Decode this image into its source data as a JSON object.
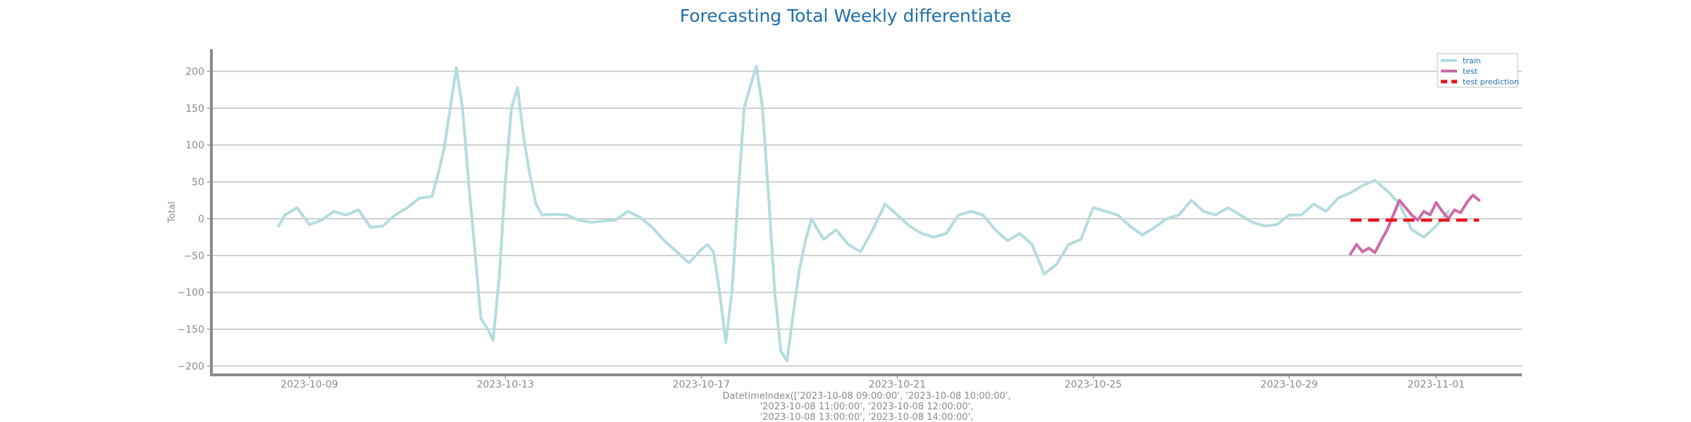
{
  "chart_data": {
    "type": "line",
    "title": "Forecasting Total Weekly differentiate",
    "ylabel": "Total",
    "xlabel_lines": [
      "DatetimeIndex(['2023-10-08 09:00:00', '2023-10-08 10:00:00',",
      "'2023-10-08 11:00:00', '2023-10-08 12:00:00',",
      "'2023-10-08 13:00:00', '2023-10-08 14:00:00',"
    ],
    "ylim": [
      -212,
      230
    ],
    "xlim": [
      "2023-10-07T00:00",
      "2023-11-02T18:00"
    ],
    "yticks": [
      200,
      150,
      100,
      50,
      0,
      -50,
      -100,
      -150,
      -200
    ],
    "ytick_labels": [
      "200",
      "150",
      "100",
      "50",
      "0",
      "−50",
      "−100",
      "−150",
      "−200"
    ],
    "xticks": [
      "2023-10-09",
      "2023-10-13",
      "2023-10-17",
      "2023-10-21",
      "2023-10-25",
      "2023-10-29",
      "2023-11-01"
    ],
    "grid": "horizontal",
    "legend_position": "top-right",
    "colors": {
      "train": "#b5dcdf",
      "test": "#cc6aa8",
      "test_prediction": "#e8161e",
      "title": "#1f6fa8",
      "axis": "#8a8a8a",
      "grid": "#c4c4c4"
    },
    "legend": [
      {
        "key": "train",
        "label": "train"
      },
      {
        "key": "test",
        "label": "test"
      },
      {
        "key": "test_prediction",
        "label": "test prediction"
      }
    ],
    "series": [
      {
        "name": "train",
        "key": "train",
        "style": "solid",
        "points": [
          [
            "2023-10-08T09:00",
            -10
          ],
          [
            "2023-10-08T12:00",
            5
          ],
          [
            "2023-10-08T18:00",
            15
          ],
          [
            "2023-10-09T00:00",
            -8
          ],
          [
            "2023-10-09T06:00",
            -2
          ],
          [
            "2023-10-09T12:00",
            10
          ],
          [
            "2023-10-09T18:00",
            5
          ],
          [
            "2023-10-10T00:00",
            12
          ],
          [
            "2023-10-10T06:00",
            -12
          ],
          [
            "2023-10-10T12:00",
            -10
          ],
          [
            "2023-10-10T18:00",
            5
          ],
          [
            "2023-10-11T00:00",
            15
          ],
          [
            "2023-10-11T06:00",
            28
          ],
          [
            "2023-10-11T12:00",
            30
          ],
          [
            "2023-10-11T15:00",
            60
          ],
          [
            "2023-10-11T18:00",
            95
          ],
          [
            "2023-10-11T21:00",
            150
          ],
          [
            "2023-10-12T00:00",
            205
          ],
          [
            "2023-10-12T03:00",
            150
          ],
          [
            "2023-10-12T06:00",
            50
          ],
          [
            "2023-10-12T09:00",
            -40
          ],
          [
            "2023-10-12T12:00",
            -135
          ],
          [
            "2023-10-12T15:00",
            -148
          ],
          [
            "2023-10-12T18:00",
            -165
          ],
          [
            "2023-10-12T21:00",
            -80
          ],
          [
            "2023-10-13T00:00",
            50
          ],
          [
            "2023-10-13T03:00",
            150
          ],
          [
            "2023-10-13T06:00",
            178
          ],
          [
            "2023-10-13T09:00",
            110
          ],
          [
            "2023-10-13T12:00",
            60
          ],
          [
            "2023-10-13T15:00",
            20
          ],
          [
            "2023-10-13T18:00",
            5
          ],
          [
            "2023-10-14T00:00",
            6
          ],
          [
            "2023-10-14T06:00",
            5
          ],
          [
            "2023-10-14T12:00",
            -2
          ],
          [
            "2023-10-14T18:00",
            -5
          ],
          [
            "2023-10-15T00:00",
            -3
          ],
          [
            "2023-10-15T06:00",
            -2
          ],
          [
            "2023-10-15T12:00",
            10
          ],
          [
            "2023-10-15T18:00",
            2
          ],
          [
            "2023-10-16T00:00",
            -12
          ],
          [
            "2023-10-16T06:00",
            -30
          ],
          [
            "2023-10-16T12:00",
            -45
          ],
          [
            "2023-10-16T18:00",
            -60
          ],
          [
            "2023-10-17T00:00",
            -42
          ],
          [
            "2023-10-17T03:00",
            -35
          ],
          [
            "2023-10-17T06:00",
            -45
          ],
          [
            "2023-10-17T09:00",
            -100
          ],
          [
            "2023-10-17T12:00",
            -168
          ],
          [
            "2023-10-17T15:00",
            -100
          ],
          [
            "2023-10-17T18:00",
            30
          ],
          [
            "2023-10-17T21:00",
            150
          ],
          [
            "2023-10-18T00:00",
            180
          ],
          [
            "2023-10-18T03:00",
            207
          ],
          [
            "2023-10-18T06:00",
            150
          ],
          [
            "2023-10-18T09:00",
            30
          ],
          [
            "2023-10-18T12:00",
            -100
          ],
          [
            "2023-10-18T15:00",
            -180
          ],
          [
            "2023-10-18T18:00",
            -193
          ],
          [
            "2023-10-18T21:00",
            -130
          ],
          [
            "2023-10-19T00:00",
            -70
          ],
          [
            "2023-10-19T03:00",
            -30
          ],
          [
            "2023-10-19T06:00",
            0
          ],
          [
            "2023-10-19T09:00",
            -15
          ],
          [
            "2023-10-19T12:00",
            -28
          ],
          [
            "2023-10-19T18:00",
            -15
          ],
          [
            "2023-10-20T00:00",
            -35
          ],
          [
            "2023-10-20T06:00",
            -45
          ],
          [
            "2023-10-20T12:00",
            -15
          ],
          [
            "2023-10-20T18:00",
            20
          ],
          [
            "2023-10-21T00:00",
            5
          ],
          [
            "2023-10-21T06:00",
            -10
          ],
          [
            "2023-10-21T12:00",
            -20
          ],
          [
            "2023-10-21T18:00",
            -25
          ],
          [
            "2023-10-22T00:00",
            -20
          ],
          [
            "2023-10-22T06:00",
            5
          ],
          [
            "2023-10-22T12:00",
            10
          ],
          [
            "2023-10-22T18:00",
            5
          ],
          [
            "2023-10-23T00:00",
            -15
          ],
          [
            "2023-10-23T06:00",
            -30
          ],
          [
            "2023-10-23T12:00",
            -20
          ],
          [
            "2023-10-23T18:00",
            -35
          ],
          [
            "2023-10-24T00:00",
            -75
          ],
          [
            "2023-10-24T06:00",
            -62
          ],
          [
            "2023-10-24T12:00",
            -35
          ],
          [
            "2023-10-24T18:00",
            -28
          ],
          [
            "2023-10-25T00:00",
            15
          ],
          [
            "2023-10-25T06:00",
            10
          ],
          [
            "2023-10-25T12:00",
            5
          ],
          [
            "2023-10-25T18:00",
            -10
          ],
          [
            "2023-10-26T00:00",
            -22
          ],
          [
            "2023-10-26T06:00",
            -12
          ],
          [
            "2023-10-26T12:00",
            0
          ],
          [
            "2023-10-26T18:00",
            5
          ],
          [
            "2023-10-27T00:00",
            25
          ],
          [
            "2023-10-27T06:00",
            10
          ],
          [
            "2023-10-27T12:00",
            5
          ],
          [
            "2023-10-27T18:00",
            15
          ],
          [
            "2023-10-28T00:00",
            5
          ],
          [
            "2023-10-28T06:00",
            -5
          ],
          [
            "2023-10-28T12:00",
            -10
          ],
          [
            "2023-10-28T18:00",
            -8
          ],
          [
            "2023-10-29T00:00",
            5
          ],
          [
            "2023-10-29T06:00",
            5
          ],
          [
            "2023-10-29T12:00",
            20
          ],
          [
            "2023-10-29T18:00",
            10
          ],
          [
            "2023-10-30T00:00",
            28
          ],
          [
            "2023-10-30T06:00",
            35
          ],
          [
            "2023-10-30T12:00",
            45
          ],
          [
            "2023-10-30T18:00",
            52
          ],
          [
            "2023-10-31T00:00",
            38
          ],
          [
            "2023-10-31T06:00",
            20
          ],
          [
            "2023-10-31T12:00",
            -15
          ],
          [
            "2023-10-31T18:00",
            -25
          ],
          [
            "2023-11-01T00:00",
            -10
          ],
          [
            "2023-11-01T06:00",
            10
          ]
        ]
      },
      {
        "name": "test",
        "key": "test",
        "style": "solid",
        "points": [
          [
            "2023-10-30T06:00",
            -48
          ],
          [
            "2023-10-30T09:00",
            -35
          ],
          [
            "2023-10-30T12:00",
            -45
          ],
          [
            "2023-10-30T15:00",
            -40
          ],
          [
            "2023-10-30T18:00",
            -46
          ],
          [
            "2023-10-30T21:00",
            -30
          ],
          [
            "2023-10-31T00:00",
            -15
          ],
          [
            "2023-10-31T03:00",
            5
          ],
          [
            "2023-10-31T06:00",
            25
          ],
          [
            "2023-10-31T09:00",
            15
          ],
          [
            "2023-10-31T12:00",
            5
          ],
          [
            "2023-10-31T15:00",
            -2
          ],
          [
            "2023-10-31T18:00",
            10
          ],
          [
            "2023-10-31T21:00",
            5
          ],
          [
            "2023-11-01T00:00",
            22
          ],
          [
            "2023-11-01T03:00",
            10
          ],
          [
            "2023-11-01T06:00",
            0
          ],
          [
            "2023-11-01T09:00",
            12
          ],
          [
            "2023-11-01T12:00",
            8
          ],
          [
            "2023-11-01T15:00",
            22
          ],
          [
            "2023-11-01T18:00",
            32
          ],
          [
            "2023-11-01T21:00",
            25
          ]
        ]
      },
      {
        "name": "test prediction",
        "key": "test_prediction",
        "style": "dashed",
        "points": [
          [
            "2023-10-30T06:00",
            -2
          ],
          [
            "2023-11-01T21:00",
            -2
          ]
        ]
      }
    ]
  }
}
